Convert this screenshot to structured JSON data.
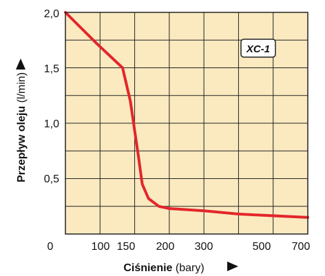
{
  "chart_data": {
    "type": "line",
    "xlabel_bold": "Ciśnienie",
    "xlabel_unit": "(bary)",
    "ylabel_bold": "Przepływ oleju",
    "ylabel_unit": "(l/min)",
    "x_categories": [
      "0",
      "100",
      "200",
      "300",
      "500",
      "700"
    ],
    "x_tick_labels": [
      "0",
      "100",
      "150",
      "200",
      "300",
      "500",
      "700"
    ],
    "y_tick_labels": [
      "0,5",
      "1,0",
      "1,5",
      "2,0"
    ],
    "ylim": [
      0,
      2.0
    ],
    "grid": true,
    "background_color": "#fbeac0",
    "grid_color": "#222222",
    "series": [
      {
        "name": "XC-1",
        "color": "#e3262b",
        "points": [
          {
            "x": 0,
            "y": 2.0
          },
          {
            "x": 60,
            "y": 1.72
          },
          {
            "x": 110,
            "y": 1.5
          },
          {
            "x": 125,
            "y": 1.2
          },
          {
            "x": 140,
            "y": 0.72
          },
          {
            "x": 148,
            "y": 0.45
          },
          {
            "x": 160,
            "y": 0.32
          },
          {
            "x": 180,
            "y": 0.25
          },
          {
            "x": 200,
            "y": 0.23
          },
          {
            "x": 300,
            "y": 0.21
          },
          {
            "x": 500,
            "y": 0.18
          },
          {
            "x": 700,
            "y": 0.15
          }
        ]
      }
    ],
    "badge": "XC-1"
  }
}
